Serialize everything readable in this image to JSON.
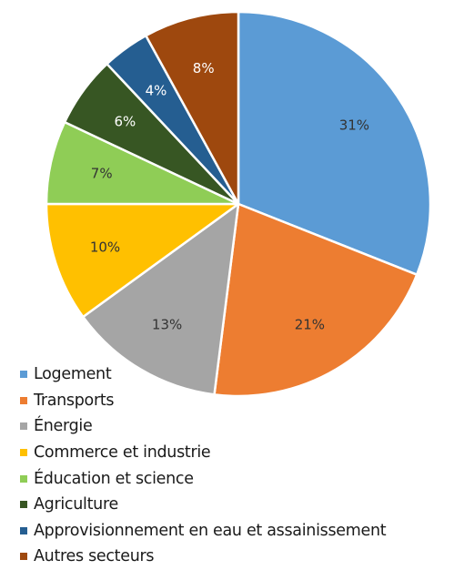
{
  "chart_data": {
    "type": "pie",
    "categories": [
      "Logement",
      "Transports",
      "Énergie",
      "Commerce et industrie",
      "Éducation et science",
      "Agriculture",
      "Approvisionnement en eau et assainissement",
      "Autres secteurs"
    ],
    "values": [
      31,
      21,
      13,
      10,
      7,
      6,
      4,
      8
    ],
    "value_labels": [
      "31%",
      "21%",
      "13%",
      "10%",
      "7%",
      "6%",
      "4%",
      "8%"
    ],
    "colors": [
      "#5b9bd5",
      "#ed7d31",
      "#a5a5a5",
      "#ffc000",
      "#8fcd56",
      "#375623",
      "#255e91",
      "#9e480e"
    ],
    "label_colors": [
      "#333333",
      "#333333",
      "#333333",
      "#333333",
      "#333333",
      "#ffffff",
      "#ffffff",
      "#ffffff"
    ],
    "start_angle_deg": 0,
    "direction": "clockwise",
    "legend_placement": "bottom-left"
  }
}
